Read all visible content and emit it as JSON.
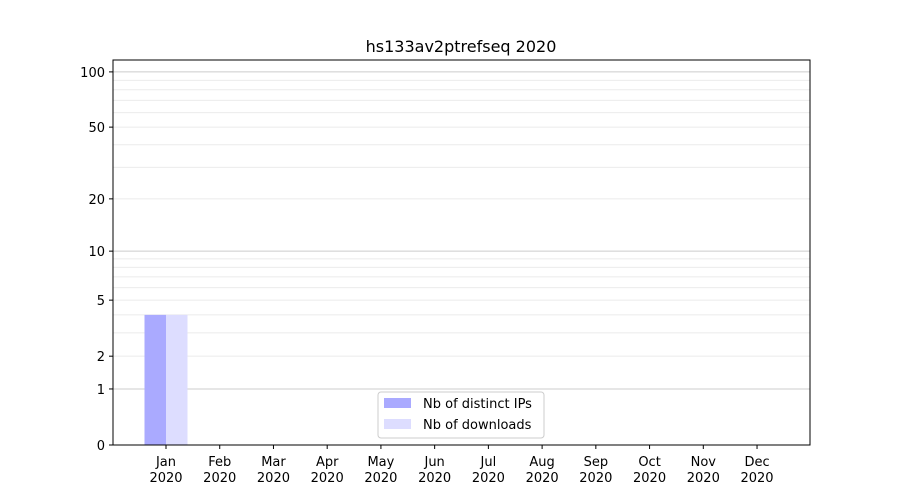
{
  "chart_data": {
    "type": "bar",
    "title": "hs133av2ptrefseq 2020",
    "xlabel": "",
    "ylabel": "",
    "y_scale": "log(y+1)",
    "ylim": [
      0,
      116
    ],
    "y_ticks": [
      0,
      1,
      2,
      5,
      10,
      20,
      50,
      100
    ],
    "grid": true,
    "legend_position": "lower-center",
    "categories": [
      "Jan\n2020",
      "Feb\n2020",
      "Mar\n2020",
      "Apr\n2020",
      "May\n2020",
      "Jun\n2020",
      "Jul\n2020",
      "Aug\n2020",
      "Sep\n2020",
      "Oct\n2020",
      "Nov\n2020",
      "Dec\n2020"
    ],
    "series": [
      {
        "name": "Nb of distinct IPs",
        "color": "#aaaaff",
        "values": [
          4,
          0,
          0,
          0,
          0,
          0,
          0,
          0,
          0,
          0,
          0,
          0
        ]
      },
      {
        "name": "Nb of downloads",
        "color": "#ddddff",
        "values": [
          4,
          0,
          0,
          0,
          0,
          0,
          0,
          0,
          0,
          0,
          0,
          0
        ]
      }
    ]
  }
}
